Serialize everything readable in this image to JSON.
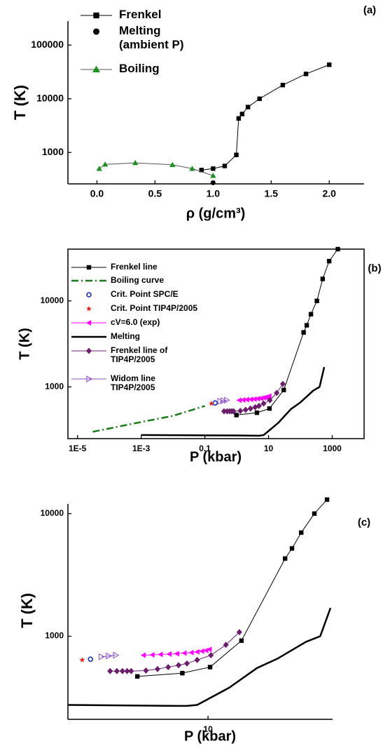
{
  "chart_data": [
    {
      "type": "line",
      "panel_label": "(a)",
      "xlabel": "ρ (g/cm³)",
      "ylabel": "T (K)",
      "xlim": [
        -0.25,
        2.3
      ],
      "ylim": [
        260,
        280000
      ],
      "yscale": "log",
      "xticks": [
        {
          "value": 0,
          "label": "0.0"
        },
        0.5,
        {
          "value": 1,
          "label": "1.0"
        },
        1.5,
        {
          "value": 2,
          "label": "2.0"
        }
      ],
      "yticks": [
        1000,
        10000,
        100000
      ],
      "series": [
        {
          "name": "Frenkel",
          "color": "#000000",
          "marker": "square",
          "linestyle": "solid",
          "linewidth": 1,
          "x": [
            0.9,
            1.0,
            1.1,
            1.2,
            1.22,
            1.25,
            1.3,
            1.4,
            1.6,
            1.8,
            2.0
          ],
          "values": [
            470,
            500,
            560,
            900,
            4300,
            5200,
            7000,
            10000,
            18000,
            29000,
            43000
          ]
        },
        {
          "name": "Melting\n(ambient P)",
          "color": "#000000",
          "marker": "circle",
          "linestyle": "none",
          "linewidth": 1,
          "x": [
            1.0
          ],
          "values": [
            273
          ]
        },
        {
          "name": "Boiling",
          "color": "#1f8f1f",
          "line_color": "#555555",
          "marker": "triangle",
          "linestyle": "solid",
          "linewidth": 1,
          "x": [
            0.02,
            0.07,
            0.33,
            0.65,
            0.82,
            1.0
          ],
          "values": [
            500,
            600,
            640,
            590,
            500,
            370
          ]
        }
      ]
    },
    {
      "type": "line",
      "panel_label": "(b)",
      "xlabel": "P (kbar)",
      "ylabel": "T (K)",
      "xlim": [
        5e-06,
        10000
      ],
      "ylim": [
        250,
        40000
      ],
      "xscale": "log",
      "yscale": "log",
      "xticks": [
        {
          "value": 1e-05,
          "label": "1E-5"
        },
        {
          "value": 0.001,
          "label": "1E-3"
        },
        0.1,
        10,
        1000
      ],
      "yticks": [
        1000,
        10000
      ],
      "series": [
        {
          "name": "Frenkel line",
          "color": "#000000",
          "marker": "square",
          "linestyle": "solid",
          "linewidth": 1,
          "x": [
            0.98,
            4.3,
            10.7,
            30,
            126,
            158,
            214,
            330,
            500,
            800,
            1500
          ],
          "values": [
            470,
            500,
            560,
            920,
            4300,
            5200,
            7000,
            10000,
            18000,
            29000,
            40000
          ]
        },
        {
          "name": "Boiling curve",
          "color": "#1a7a1a",
          "marker": "none",
          "linestyle": "dashdot",
          "linewidth": 2.5,
          "x": [
            3e-05,
            0.001,
            0.01,
            0.1
          ],
          "values": [
            300,
            390,
            460,
            600
          ]
        },
        {
          "name": "Crit. Point SPC/E",
          "color": "#1a2fa0",
          "marker": "open-circle",
          "linestyle": "none",
          "linewidth": 1,
          "x": [
            0.21
          ],
          "values": [
            650
          ]
        },
        {
          "name": "Crit. Point TIP4P/2005",
          "color": "#e8201a",
          "marker": "star",
          "linestyle": "none",
          "linewidth": 1,
          "x": [
            0.16
          ],
          "values": [
            640
          ]
        },
        {
          "name": "cV=6.0 (exp)",
          "color": "#ff00ff",
          "marker": "left-triangle",
          "linestyle": "solid",
          "linewidth": 1,
          "x": [
            1.2,
            1.6,
            2.1,
            2.8,
            3.6,
            4.6,
            5.8,
            7,
            8.2,
            9.4,
            10.5
          ],
          "values": [
            700,
            705,
            710,
            715,
            720,
            728,
            735,
            745,
            755,
            765,
            780
          ]
        },
        {
          "name": "Melting",
          "color": "#000000",
          "marker": "none",
          "linestyle": "solid",
          "linewidth": 2.5,
          "x": [
            0.001,
            0.01,
            0.1,
            1,
            5,
            7,
            20,
            50,
            100,
            250,
            400,
            560
          ],
          "values": [
            275,
            274,
            273,
            272,
            270,
            275,
            380,
            550,
            660,
            900,
            1000,
            1700
          ]
        },
        {
          "name": "Frenkel line of\nTIP4P/2005",
          "color": "#6b1f6b",
          "marker": "diamond",
          "linestyle": "solid",
          "linewidth": 1,
          "x": [
            0.4,
            0.5,
            0.6,
            0.7,
            0.8,
            1.3,
            1.9,
            2.7,
            3.8,
            5,
            7,
            11,
            18,
            28
          ],
          "values": [
            520,
            520,
            520,
            520,
            520,
            525,
            540,
            560,
            580,
            600,
            640,
            700,
            850,
            1080
          ]
        },
        {
          "name": "Widom line\nTIP4P/2005",
          "color": "#8a4fbf",
          "marker": "open-right-triangle",
          "linestyle": "solid",
          "linewidth": 1,
          "x": [
            0.3,
            0.38,
            0.48
          ],
          "values": [
            680,
            690,
            700
          ]
        }
      ]
    },
    {
      "type": "line",
      "panel_label": "(c)",
      "xlabel": "P (kbar)",
      "ylabel": "T (K)",
      "xlim": [
        0.1,
        600
      ],
      "ylim": [
        210,
        12000
      ],
      "xscale": "log",
      "yscale": "log",
      "xticks": [
        10
      ],
      "yticks": [
        1000,
        10000
      ],
      "series": [
        {
          "color": "#000000",
          "marker": "square",
          "linestyle": "solid",
          "linewidth": 1,
          "x": [
            0.98,
            4.3,
            10.7,
            30,
            126,
            158,
            214,
            330,
            500
          ],
          "values": [
            470,
            500,
            560,
            920,
            4300,
            5200,
            7000,
            10000,
            13000
          ]
        },
        {
          "color": "#1a2fa0",
          "marker": "open-circle",
          "linestyle": "none",
          "linewidth": 1,
          "x": [
            0.21
          ],
          "values": [
            650
          ]
        },
        {
          "color": "#e8201a",
          "marker": "star",
          "linestyle": "none",
          "linewidth": 1,
          "x": [
            0.16
          ],
          "values": [
            640
          ]
        },
        {
          "color": "#ff00ff",
          "marker": "left-triangle",
          "linestyle": "solid",
          "linewidth": 1,
          "x": [
            1.2,
            1.6,
            2.1,
            2.8,
            3.6,
            4.6,
            5.8,
            7,
            8.2,
            9.4,
            10.5
          ],
          "values": [
            700,
            705,
            710,
            715,
            720,
            728,
            735,
            745,
            755,
            765,
            780
          ]
        },
        {
          "color": "#000000",
          "marker": "none",
          "linestyle": "solid",
          "linewidth": 2.5,
          "x": [
            0.1,
            1,
            5,
            7,
            20,
            50,
            100,
            250,
            400,
            560
          ],
          "values": [
            275,
            272,
            270,
            275,
            380,
            550,
            660,
            900,
            1000,
            1700
          ]
        },
        {
          "color": "#6b1f6b",
          "marker": "diamond",
          "linestyle": "solid",
          "linewidth": 1,
          "x": [
            0.4,
            0.5,
            0.6,
            0.7,
            0.8,
            1.3,
            1.9,
            2.7,
            3.8,
            5,
            7,
            11,
            18,
            28
          ],
          "values": [
            520,
            520,
            520,
            520,
            520,
            525,
            540,
            560,
            580,
            600,
            640,
            700,
            850,
            1080
          ]
        },
        {
          "color": "#8a4fbf",
          "marker": "open-right-triangle",
          "linestyle": "solid",
          "linewidth": 1,
          "x": [
            0.3,
            0.38,
            0.48
          ],
          "values": [
            680,
            690,
            700
          ]
        }
      ]
    }
  ]
}
